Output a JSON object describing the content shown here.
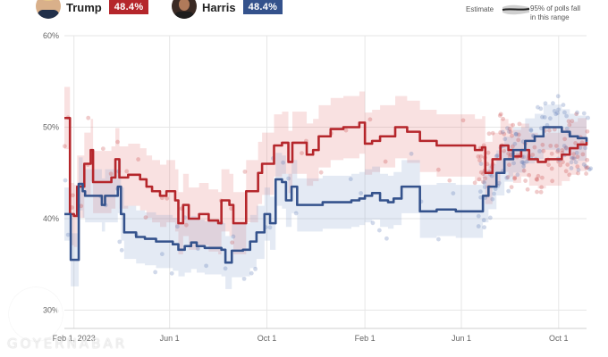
{
  "candidates": [
    {
      "name": "Trump",
      "pct": "48.4%",
      "color": "#b5262b"
    },
    {
      "name": "Harris",
      "pct": "48.4%",
      "color": "#34528c"
    }
  ],
  "legend": {
    "estimate": "Estimate",
    "range_line1": "95% of polls fall",
    "range_line2": "in this range"
  },
  "watermark": "GOYERNABAR",
  "chart_data": {
    "type": "line",
    "x_tick_labels": [
      "Feb 1, 2023",
      "Jun 1",
      "Oct 1",
      "Feb 1",
      "Jun 1",
      "Oct 1"
    ],
    "x_ticks": [
      "2023-02-01",
      "2023-06-01",
      "2023-10-01",
      "2024-02-01",
      "2024-06-01",
      "2024-10-01"
    ],
    "x_range": [
      "2023-01-20",
      "2024-11-05"
    ],
    "y_tick_labels": [
      "30%",
      "40%",
      "50%",
      "60%"
    ],
    "ylim": [
      28,
      60
    ],
    "grid": true,
    "series": [
      {
        "name": "Trump",
        "color": "#b5262b",
        "points": [
          [
            "2023-01-20",
            51.0
          ],
          [
            "2023-01-25",
            51.0
          ],
          [
            "2023-01-27",
            40.5
          ],
          [
            "2023-02-01",
            40.3
          ],
          [
            "2023-02-05",
            43.5
          ],
          [
            "2023-02-10",
            43.5
          ],
          [
            "2023-02-14",
            46.0
          ],
          [
            "2023-02-18",
            46.0
          ],
          [
            "2023-02-22",
            47.5
          ],
          [
            "2023-02-25",
            44.0
          ],
          [
            "2023-03-10",
            44.0
          ],
          [
            "2023-03-20",
            44.5
          ],
          [
            "2023-03-25",
            46.5
          ],
          [
            "2023-03-30",
            44.5
          ],
          [
            "2023-04-10",
            44.8
          ],
          [
            "2023-04-25",
            44.3
          ],
          [
            "2023-05-03",
            43.5
          ],
          [
            "2023-05-10",
            43.0
          ],
          [
            "2023-05-20",
            42.5
          ],
          [
            "2023-05-28",
            43.0
          ],
          [
            "2023-06-08",
            42.0
          ],
          [
            "2023-06-12",
            39.5
          ],
          [
            "2023-06-18",
            41.5
          ],
          [
            "2023-06-25",
            40.0
          ],
          [
            "2023-07-08",
            40.5
          ],
          [
            "2023-07-20",
            39.8
          ],
          [
            "2023-08-01",
            39.5
          ],
          [
            "2023-08-05",
            42.0
          ],
          [
            "2023-08-15",
            41.5
          ],
          [
            "2023-08-20",
            39.5
          ],
          [
            "2023-09-03",
            39.5
          ],
          [
            "2023-09-05",
            43.0
          ],
          [
            "2023-09-20",
            45.0
          ],
          [
            "2023-09-25",
            46.0
          ],
          [
            "2023-10-06",
            46.0
          ],
          [
            "2023-10-10",
            48.0
          ],
          [
            "2023-10-20",
            48.3
          ],
          [
            "2023-10-28",
            46.2
          ],
          [
            "2023-11-02",
            48.3
          ],
          [
            "2023-11-15",
            48.3
          ],
          [
            "2023-11-20",
            47.0
          ],
          [
            "2023-11-28",
            47.5
          ],
          [
            "2023-12-05",
            49.0
          ],
          [
            "2023-12-20",
            49.8
          ],
          [
            "2024-01-05",
            50.0
          ],
          [
            "2024-01-25",
            50.5
          ],
          [
            "2024-02-01",
            48.2
          ],
          [
            "2024-02-10",
            48.5
          ],
          [
            "2024-02-20",
            49.0
          ],
          [
            "2024-03-01",
            49.0
          ],
          [
            "2024-03-10",
            50.0
          ],
          [
            "2024-03-25",
            49.5
          ],
          [
            "2024-04-10",
            48.5
          ],
          [
            "2024-04-20",
            48.5
          ],
          [
            "2024-05-01",
            48.0
          ],
          [
            "2024-05-20",
            48.0
          ],
          [
            "2024-06-01",
            48.0
          ],
          [
            "2024-06-18",
            47.5
          ],
          [
            "2024-06-27",
            47.8
          ],
          [
            "2024-07-01",
            45.0
          ],
          [
            "2024-07-10",
            46.5
          ],
          [
            "2024-07-20",
            48.0
          ],
          [
            "2024-07-30",
            47.5
          ],
          [
            "2024-08-05",
            46.8
          ],
          [
            "2024-08-15",
            47.5
          ],
          [
            "2024-08-25",
            46.5
          ],
          [
            "2024-09-05",
            46.2
          ],
          [
            "2024-09-15",
            46.5
          ],
          [
            "2024-09-25",
            46.5
          ],
          [
            "2024-10-05",
            47.0
          ],
          [
            "2024-10-15",
            47.7
          ],
          [
            "2024-10-25",
            48.1
          ],
          [
            "2024-11-05",
            48.4
          ]
        ]
      },
      {
        "name": "Harris",
        "color": "#34528c",
        "points": [
          [
            "2023-01-20",
            40.5
          ],
          [
            "2023-01-25",
            40.5
          ],
          [
            "2023-01-28",
            35.5
          ],
          [
            "2023-02-05",
            35.5
          ],
          [
            "2023-02-07",
            43.8
          ],
          [
            "2023-02-12",
            43.0
          ],
          [
            "2023-02-15",
            42.5
          ],
          [
            "2023-03-05",
            42.5
          ],
          [
            "2023-03-08",
            41.5
          ],
          [
            "2023-03-12",
            42.5
          ],
          [
            "2023-03-25",
            42.5
          ],
          [
            "2023-03-28",
            43.5
          ],
          [
            "2023-04-01",
            40.5
          ],
          [
            "2023-04-05",
            38.5
          ],
          [
            "2023-04-20",
            38.0
          ],
          [
            "2023-05-01",
            37.8
          ],
          [
            "2023-05-15",
            37.5
          ],
          [
            "2023-05-25",
            37.5
          ],
          [
            "2023-06-05",
            37.2
          ],
          [
            "2023-06-12",
            36.6
          ],
          [
            "2023-06-20",
            37.0
          ],
          [
            "2023-06-28",
            37.4
          ],
          [
            "2023-07-05",
            37.0
          ],
          [
            "2023-07-15",
            36.8
          ],
          [
            "2023-07-25",
            36.8
          ],
          [
            "2023-08-05",
            36.6
          ],
          [
            "2023-08-10",
            35.2
          ],
          [
            "2023-08-18",
            36.5
          ],
          [
            "2023-09-01",
            36.6
          ],
          [
            "2023-09-10",
            37.5
          ],
          [
            "2023-09-18",
            38.5
          ],
          [
            "2023-09-28",
            40.5
          ],
          [
            "2023-10-05",
            39.5
          ],
          [
            "2023-10-12",
            44.3
          ],
          [
            "2023-10-20",
            44.0
          ],
          [
            "2023-10-25",
            42.0
          ],
          [
            "2023-11-01",
            43.5
          ],
          [
            "2023-11-08",
            41.5
          ],
          [
            "2023-11-25",
            41.5
          ],
          [
            "2023-12-10",
            41.8
          ],
          [
            "2023-12-30",
            41.8
          ],
          [
            "2024-01-15",
            42.0
          ],
          [
            "2024-01-25",
            42.2
          ],
          [
            "2024-02-01",
            42.5
          ],
          [
            "2024-02-10",
            42.8
          ],
          [
            "2024-02-20",
            42.0
          ],
          [
            "2024-03-01",
            41.8
          ],
          [
            "2024-03-08",
            42.2
          ],
          [
            "2024-03-18",
            43.5
          ],
          [
            "2024-04-01",
            43.5
          ],
          [
            "2024-04-10",
            40.8
          ],
          [
            "2024-05-01",
            41.0
          ],
          [
            "2024-05-25",
            40.8
          ],
          [
            "2024-06-20",
            40.8
          ],
          [
            "2024-06-28",
            42.5
          ],
          [
            "2024-07-05",
            43.5
          ],
          [
            "2024-07-15",
            45.0
          ],
          [
            "2024-07-25",
            46.5
          ],
          [
            "2024-08-05",
            47.5
          ],
          [
            "2024-08-20",
            48.5
          ],
          [
            "2024-09-01",
            49.0
          ],
          [
            "2024-09-12",
            50.0
          ],
          [
            "2024-09-25",
            50.0
          ],
          [
            "2024-10-05",
            49.5
          ],
          [
            "2024-10-15",
            49.0
          ],
          [
            "2024-10-25",
            48.8
          ],
          [
            "2024-11-05",
            48.4
          ]
        ]
      }
    ]
  }
}
